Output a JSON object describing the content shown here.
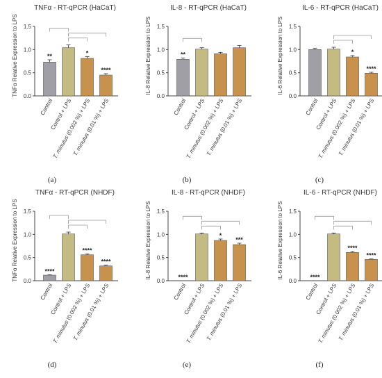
{
  "colors": {
    "grey": "#a09fa6",
    "khaki": "#c4bb82",
    "orange": "#c8924c",
    "axis": "#444444",
    "bracket": "#9a9a9a"
  },
  "x_categories": [
    "Control",
    "Control + LPS",
    "T. minutus (0.002 %) + LPS",
    "T. minutus (0.01 %) + LPS"
  ],
  "x_label_parts": {
    "control": "Control",
    "control_lps": "Control + LPS",
    "italic_name": "T. minutus",
    "low_suffix": " (0.002 %) + LPS",
    "high_suffix": " (0.01 %) + LPS"
  },
  "chart_data": [
    {
      "type": "bar",
      "panel": "(a)",
      "title": "TNFα - RT-qPCR (HaCaT)",
      "ylabel": "TNFα Relative Expression to LPS",
      "ylim": [
        0,
        1.5
      ],
      "yticks": [
        "0.0",
        "0.5",
        "1.0",
        "1.5"
      ],
      "categories": [
        "Control",
        "Control + LPS",
        "T. minutus (0.002 %) + LPS",
        "T. minutus (0.01 %) + LPS"
      ],
      "values": [
        0.73,
        1.04,
        0.81,
        0.45
      ],
      "errors": [
        0.05,
        0.06,
        0.04,
        0.03
      ],
      "significance": [
        "**",
        "",
        "*",
        "****"
      ],
      "brackets": [
        [
          1,
          2
        ],
        [
          1,
          3
        ],
        [
          0,
          1
        ]
      ]
    },
    {
      "type": "bar",
      "panel": "(b)",
      "title": "IL-8 - RT-qPCR (HaCaT)",
      "ylabel": "IL-8 Relative Expression to LPS",
      "ylim": [
        0,
        1.5
      ],
      "yticks": [
        "0.0",
        "0.5",
        "1.0",
        "1.5"
      ],
      "categories": [
        "Control",
        "Control + LPS",
        "T. minutus (0.002 %) + LPS",
        "T. minutus (0.01 %) + LPS"
      ],
      "values": [
        0.79,
        1.01,
        0.91,
        1.04
      ],
      "errors": [
        0.03,
        0.03,
        0.03,
        0.05
      ],
      "significance": [
        "**",
        "",
        "",
        ""
      ],
      "brackets": [
        [
          0,
          1
        ]
      ]
    },
    {
      "type": "bar",
      "panel": "(c)",
      "title": "IL-6 - RT-qPCR (HaCaT)",
      "ylabel": "IL-6 Relative Expression to LPS",
      "ylim": [
        0,
        1.5
      ],
      "yticks": [
        "0.0",
        "0.5",
        "1.0",
        "1.5"
      ],
      "categories": [
        "Control",
        "Control + LPS",
        "T. minutus (0.002 %) + LPS",
        "T. minutus (0.01 %) + LPS"
      ],
      "values": [
        1.0,
        1.01,
        0.84,
        0.49
      ],
      "errors": [
        0.03,
        0.04,
        0.03,
        0.02
      ],
      "significance": [
        "",
        "",
        "*",
        "****"
      ],
      "brackets": [
        [
          1,
          2
        ],
        [
          1,
          3
        ]
      ]
    },
    {
      "type": "bar",
      "panel": "(d)",
      "title": "TNFα - RT-qPCR (NHDF)",
      "ylabel": "TNFα Relative Expression to LPS",
      "ylim": [
        0,
        1.5
      ],
      "yticks": [
        "0.0",
        "0.5",
        "1.0",
        "1.5"
      ],
      "categories": [
        "Control",
        "Control + LPS",
        "T. minutus (0.002 %) + LPS",
        "T. minutus (0.01 %) + LPS"
      ],
      "values": [
        0.12,
        1.01,
        0.56,
        0.32
      ],
      "errors": [
        0.01,
        0.04,
        0.02,
        0.02
      ],
      "significance": [
        "****",
        "",
        "****",
        "****"
      ],
      "brackets": [
        [
          1,
          2
        ],
        [
          1,
          3
        ],
        [
          0,
          1
        ]
      ]
    },
    {
      "type": "bar",
      "panel": "(e)",
      "title": "IL-8 - RT-qPCR (NHDF)",
      "ylabel": "IL-8 Relative Expression to LPS",
      "ylim": [
        0,
        1.5
      ],
      "yticks": [
        "0.0",
        "0.5",
        "1.0",
        "1.5"
      ],
      "categories": [
        "Control",
        "Control + LPS",
        "T. minutus (0.002 %) + LPS",
        "T. minutus (0.01 %) + LPS"
      ],
      "values": [
        0.0,
        1.01,
        0.87,
        0.78
      ],
      "errors": [
        0.0,
        0.02,
        0.03,
        0.03
      ],
      "significance": [
        "****",
        "",
        "*",
        "***"
      ],
      "brackets": [
        [
          1,
          2
        ],
        [
          1,
          3
        ],
        [
          0,
          1
        ]
      ]
    },
    {
      "type": "bar",
      "panel": "(f)",
      "title": "IL-6 - RT-qPCR (NHDF)",
      "ylabel": "IL-6 Relative Expression to LPS",
      "ylim": [
        0,
        1.5
      ],
      "yticks": [
        "0.0",
        "0.5",
        "1.0",
        "1.5"
      ],
      "categories": [
        "Control",
        "Control + LPS",
        "T. minutus (0.002 %) + LPS",
        "T. minutus (0.01 %) + LPS"
      ],
      "values": [
        0.0,
        1.01,
        0.61,
        0.46
      ],
      "errors": [
        0.0,
        0.02,
        0.02,
        0.01
      ],
      "significance": [
        "****",
        "",
        "****",
        "****"
      ],
      "brackets": [
        [
          1,
          2
        ],
        [
          1,
          3
        ],
        [
          0,
          1
        ]
      ]
    }
  ]
}
